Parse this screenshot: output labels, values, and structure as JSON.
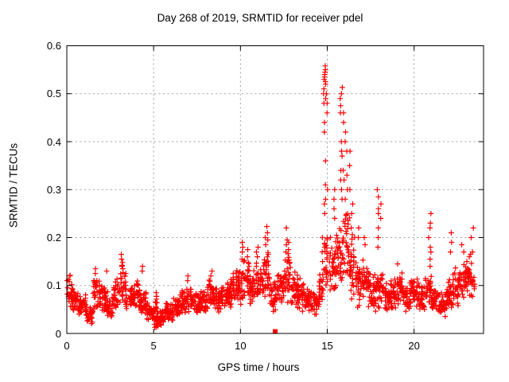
{
  "chart_data": {
    "type": "scatter",
    "title": "Day 268 of 2019, SRMTID for receiver pdel",
    "xlabel": "GPS time / hours",
    "ylabel": "SRMTID / TECUs",
    "xlim": [
      0,
      24
    ],
    "ylim": [
      0,
      0.6
    ],
    "xticks": {
      "values": [
        0,
        5,
        10,
        15,
        20
      ],
      "labels": [
        "0",
        "5",
        "10",
        "15",
        "20"
      ]
    },
    "yticks": {
      "values": [
        0,
        0.1,
        0.2,
        0.3,
        0.4,
        0.5,
        0.6
      ],
      "labels": [
        "0",
        "0.1",
        "0.2",
        "0.3",
        "0.4",
        "0.5",
        "0.6"
      ]
    },
    "grid": "dashed",
    "legend": "none",
    "marker": "plus",
    "colors": {
      "marker": "#ff0000",
      "grid": "#a0a0a0",
      "border": "#000000",
      "text": "#000000",
      "background": "#ffffff"
    },
    "description": "Dense time series of SRMTID values sampled across 24 h; baseline band ~0.03-0.13 TECUs with quiet dip near 05:00, rising wave activity 10-13 h, major disturbance 14.8-16.5 h peaking at ~0.56 TECUs near 15 h and ~0.51 near 15.8 h, secondary spikes at ~18 h (0.30) and ~20.9 h (0.25), activity rising again after 22 h; one point at zero near 12 h drawn as filled square",
    "band_bins": [
      [
        0.0,
        0.3,
        0.05,
        0.125,
        26
      ],
      [
        0.3,
        0.7,
        0.035,
        0.1,
        32
      ],
      [
        0.7,
        1.1,
        0.03,
        0.085,
        32
      ],
      [
        1.1,
        1.5,
        0.018,
        0.065,
        32
      ],
      [
        1.5,
        1.9,
        0.045,
        0.125,
        32
      ],
      [
        1.9,
        2.3,
        0.04,
        0.11,
        32
      ],
      [
        2.3,
        2.7,
        0.03,
        0.09,
        32
      ],
      [
        2.7,
        3.1,
        0.05,
        0.115,
        32
      ],
      [
        3.1,
        3.4,
        0.055,
        0.155,
        24
      ],
      [
        3.4,
        3.8,
        0.04,
        0.1,
        32
      ],
      [
        3.8,
        4.2,
        0.05,
        0.12,
        32
      ],
      [
        4.2,
        4.6,
        0.035,
        0.095,
        32
      ],
      [
        4.6,
        5.0,
        0.02,
        0.065,
        32
      ],
      [
        5.0,
        5.3,
        0.006,
        0.05,
        24
      ],
      [
        5.05,
        5.2,
        0.01,
        0.095,
        12
      ],
      [
        5.3,
        5.7,
        0.015,
        0.055,
        32
      ],
      [
        5.7,
        6.1,
        0.025,
        0.07,
        32
      ],
      [
        6.1,
        6.5,
        0.03,
        0.08,
        32
      ],
      [
        6.5,
        6.9,
        0.04,
        0.095,
        32
      ],
      [
        6.9,
        7.3,
        0.04,
        0.1,
        32
      ],
      [
        7.3,
        7.7,
        0.035,
        0.09,
        32
      ],
      [
        7.7,
        8.1,
        0.04,
        0.1,
        32
      ],
      [
        8.1,
        8.5,
        0.05,
        0.115,
        32
      ],
      [
        8.5,
        8.9,
        0.04,
        0.1,
        32
      ],
      [
        8.9,
        9.3,
        0.05,
        0.11,
        32
      ],
      [
        9.3,
        9.7,
        0.05,
        0.125,
        32
      ],
      [
        9.7,
        10.1,
        0.05,
        0.135,
        32
      ],
      [
        10.1,
        10.5,
        0.06,
        0.17,
        32
      ],
      [
        10.5,
        10.9,
        0.05,
        0.14,
        32
      ],
      [
        10.9,
        11.3,
        0.06,
        0.165,
        32
      ],
      [
        11.3,
        11.7,
        0.06,
        0.185,
        32
      ],
      [
        11.7,
        12.1,
        0.04,
        0.11,
        32
      ],
      [
        12.1,
        12.5,
        0.05,
        0.14,
        32
      ],
      [
        12.5,
        12.9,
        0.06,
        0.175,
        32
      ],
      [
        12.9,
        13.3,
        0.05,
        0.14,
        32
      ],
      [
        13.3,
        13.7,
        0.04,
        0.12,
        32
      ],
      [
        13.7,
        14.1,
        0.04,
        0.1,
        32
      ],
      [
        14.1,
        14.5,
        0.035,
        0.1,
        32
      ],
      [
        14.5,
        14.8,
        0.05,
        0.135,
        24
      ],
      [
        14.8,
        15.1,
        0.07,
        0.22,
        24
      ],
      [
        15.1,
        15.5,
        0.08,
        0.21,
        32
      ],
      [
        15.5,
        15.9,
        0.09,
        0.24,
        32
      ],
      [
        15.9,
        16.3,
        0.08,
        0.28,
        36
      ],
      [
        16.3,
        16.7,
        0.06,
        0.21,
        32
      ],
      [
        16.7,
        17.1,
        0.05,
        0.16,
        32
      ],
      [
        17.1,
        17.5,
        0.05,
        0.15,
        32
      ],
      [
        17.5,
        17.9,
        0.04,
        0.13,
        32
      ],
      [
        17.9,
        18.2,
        0.05,
        0.14,
        24
      ],
      [
        18.2,
        18.6,
        0.04,
        0.11,
        32
      ],
      [
        18.6,
        19.0,
        0.04,
        0.12,
        32
      ],
      [
        19.0,
        19.4,
        0.05,
        0.13,
        32
      ],
      [
        19.4,
        19.8,
        0.04,
        0.11,
        32
      ],
      [
        19.8,
        20.2,
        0.05,
        0.12,
        32
      ],
      [
        20.2,
        20.6,
        0.04,
        0.11,
        32
      ],
      [
        20.6,
        21.0,
        0.05,
        0.13,
        32
      ],
      [
        21.0,
        21.4,
        0.04,
        0.1,
        32
      ],
      [
        21.4,
        21.8,
        0.03,
        0.09,
        32
      ],
      [
        21.8,
        22.2,
        0.04,
        0.12,
        32
      ],
      [
        22.2,
        22.6,
        0.05,
        0.15,
        32
      ],
      [
        22.6,
        23.0,
        0.05,
        0.16,
        32
      ],
      [
        23.0,
        23.5,
        0.06,
        0.17,
        38
      ]
    ],
    "spike_columns": [
      [
        1.7,
        [
          0.135,
          0.125
        ]
      ],
      [
        2.3,
        [
          0.13
        ]
      ],
      [
        3.15,
        [
          0.165,
          0.155,
          0.148,
          0.14
        ]
      ],
      [
        4.3,
        [
          0.14,
          0.13
        ]
      ],
      [
        6.95,
        [
          0.12,
          0.11
        ]
      ],
      [
        8.35,
        [
          0.13,
          0.12
        ]
      ],
      [
        9.55,
        [
          0.125
        ]
      ],
      [
        10.15,
        [
          0.19,
          0.18,
          0.17,
          0.155
        ]
      ],
      [
        10.35,
        [
          0.175,
          0.16
        ]
      ],
      [
        10.95,
        [
          0.18,
          0.17,
          0.16
        ]
      ],
      [
        11.45,
        [
          0.2,
          0.185
        ]
      ],
      [
        11.55,
        [
          0.223,
          0.21,
          0.195
        ]
      ],
      [
        12.65,
        [
          0.22,
          0.195,
          0.185,
          0.17
        ]
      ],
      [
        12.75,
        [
          0.19,
          0.175
        ]
      ],
      [
        14.75,
        [
          0.2,
          0.17,
          0.15
        ]
      ],
      [
        14.85,
        [
          0.558,
          0.55,
          0.545,
          0.54,
          0.535,
          0.53,
          0.525,
          0.52,
          0.51,
          0.5,
          0.49,
          0.48,
          0.44,
          0.42,
          0.36,
          0.31,
          0.27,
          0.25
        ]
      ],
      [
        14.95,
        [
          0.5,
          0.48,
          0.46,
          0.3,
          0.28
        ]
      ],
      [
        15.4,
        [
          0.3,
          0.28,
          0.26,
          0.24
        ]
      ],
      [
        15.8,
        [
          0.513,
          0.5,
          0.49,
          0.475,
          0.46,
          0.4,
          0.38,
          0.37,
          0.34,
          0.32,
          0.3,
          0.28
        ]
      ],
      [
        15.92,
        [
          0.46,
          0.44,
          0.34,
          0.32
        ]
      ],
      [
        16.1,
        [
          0.42,
          0.4,
          0.38,
          0.33,
          0.3,
          0.28
        ]
      ],
      [
        16.25,
        [
          0.38,
          0.35,
          0.3
        ]
      ],
      [
        16.45,
        [
          0.27,
          0.25,
          0.22
        ]
      ],
      [
        16.8,
        [
          0.22,
          0.2
        ]
      ],
      [
        17.15,
        [
          0.2,
          0.185
        ]
      ],
      [
        17.95,
        [
          0.3,
          0.285,
          0.26,
          0.25,
          0.22,
          0.2,
          0.18
        ]
      ],
      [
        18.05,
        [
          0.27,
          0.24
        ]
      ],
      [
        19.1,
        [
          0.145
        ]
      ],
      [
        20.9,
        [
          0.25,
          0.23,
          0.22,
          0.2,
          0.18,
          0.17,
          0.155,
          0.14
        ]
      ],
      [
        22.1,
        [
          0.21,
          0.19,
          0.17
        ]
      ],
      [
        22.8,
        [
          0.185,
          0.17
        ]
      ],
      [
        23.35,
        [
          0.22,
          0.2,
          0.17
        ]
      ]
    ],
    "special_points": [
      {
        "x": 12.0,
        "y": 0.004,
        "marker": "filled-square"
      }
    ]
  }
}
